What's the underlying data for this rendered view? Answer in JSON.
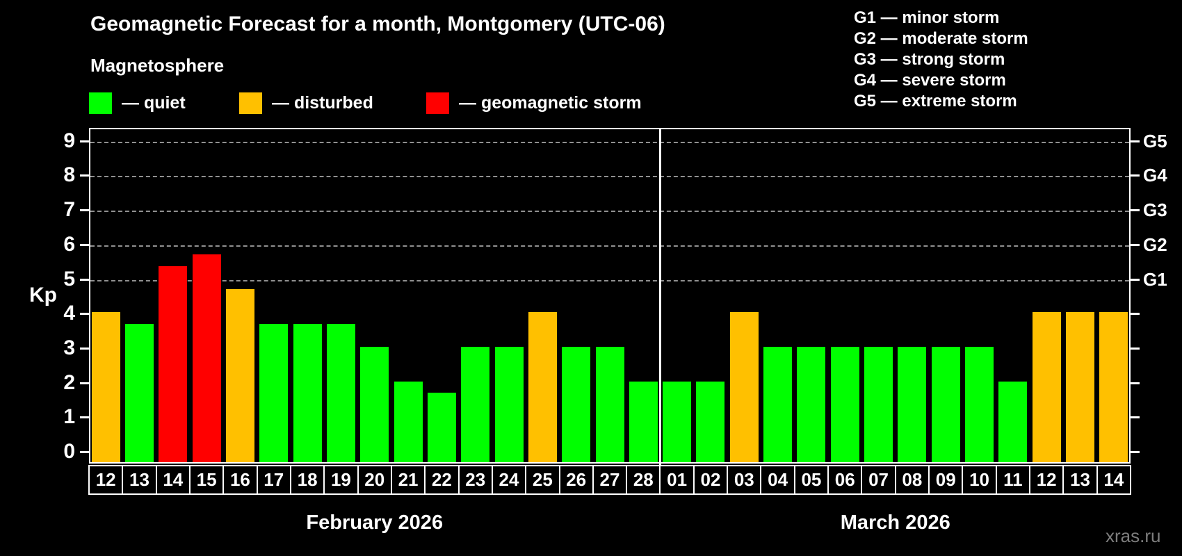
{
  "header": {
    "title": "Geomagnetic Forecast for a month, Montgomery (UTC-06)",
    "subtitle": "Magnetosphere"
  },
  "legend": {
    "items": [
      {
        "key": "quiet",
        "label": "— quiet",
        "color": "#00ff00"
      },
      {
        "key": "disturbed",
        "label": "— disturbed",
        "color": "#ffc000"
      },
      {
        "key": "storm",
        "label": "— geomagnetic storm",
        "color": "#ff0000"
      }
    ]
  },
  "g_legend": [
    "G1 — minor storm",
    "G2 — moderate storm",
    "G3 — strong storm",
    "G4 — severe storm",
    "G5 — extreme storm"
  ],
  "watermark": "xras.ru",
  "colors": {
    "background": "#000000",
    "text": "#ffffff",
    "grid": "#aaaaaa",
    "axis": "#ffffff",
    "quiet": "#00ff00",
    "disturbed": "#ffc000",
    "storm": "#ff0000",
    "watermark": "#7d7d7d"
  },
  "chart_data": {
    "type": "bar",
    "title": "Geomagnetic Forecast for a month, Montgomery (UTC-06)",
    "ylabel": "Kp",
    "ylim": [
      0,
      9.5
    ],
    "yticks": [
      0,
      1,
      2,
      3,
      4,
      5,
      6,
      7,
      8,
      9
    ],
    "gridlines_at_kp": [
      5,
      6,
      7,
      8,
      9
    ],
    "grid": "dashed",
    "legend_position": "top",
    "right_axis_labels": [
      {
        "label": "G1",
        "kp": 5
      },
      {
        "label": "G2",
        "kp": 6
      },
      {
        "label": "G3",
        "kp": 7
      },
      {
        "label": "G4",
        "kp": 8
      },
      {
        "label": "G5",
        "kp": 9
      }
    ],
    "months": [
      {
        "label": "February 2026",
        "start_index": 0,
        "days": 17
      },
      {
        "label": "March 2026",
        "start_index": 17,
        "days": 14
      }
    ],
    "days": [
      {
        "date": "12",
        "month": "February 2026",
        "kp": 4.0,
        "status": "disturbed"
      },
      {
        "date": "13",
        "month": "February 2026",
        "kp": 3.67,
        "status": "quiet"
      },
      {
        "date": "14",
        "month": "February 2026",
        "kp": 5.33,
        "status": "storm"
      },
      {
        "date": "15",
        "month": "February 2026",
        "kp": 5.67,
        "status": "storm"
      },
      {
        "date": "16",
        "month": "February 2026",
        "kp": 4.67,
        "status": "disturbed"
      },
      {
        "date": "17",
        "month": "February 2026",
        "kp": 3.67,
        "status": "quiet"
      },
      {
        "date": "18",
        "month": "February 2026",
        "kp": 3.67,
        "status": "quiet"
      },
      {
        "date": "19",
        "month": "February 2026",
        "kp": 3.67,
        "status": "quiet"
      },
      {
        "date": "20",
        "month": "February 2026",
        "kp": 3.0,
        "status": "quiet"
      },
      {
        "date": "21",
        "month": "February 2026",
        "kp": 2.0,
        "status": "quiet"
      },
      {
        "date": "22",
        "month": "February 2026",
        "kp": 1.67,
        "status": "quiet"
      },
      {
        "date": "23",
        "month": "February 2026",
        "kp": 3.0,
        "status": "quiet"
      },
      {
        "date": "24",
        "month": "February 2026",
        "kp": 3.0,
        "status": "quiet"
      },
      {
        "date": "25",
        "month": "February 2026",
        "kp": 4.0,
        "status": "disturbed"
      },
      {
        "date": "26",
        "month": "February 2026",
        "kp": 3.0,
        "status": "quiet"
      },
      {
        "date": "27",
        "month": "February 2026",
        "kp": 3.0,
        "status": "quiet"
      },
      {
        "date": "28",
        "month": "February 2026",
        "kp": 2.0,
        "status": "quiet"
      },
      {
        "date": "01",
        "month": "March 2026",
        "kp": 2.0,
        "status": "quiet"
      },
      {
        "date": "02",
        "month": "March 2026",
        "kp": 2.0,
        "status": "quiet"
      },
      {
        "date": "03",
        "month": "March 2026",
        "kp": 4.0,
        "status": "disturbed"
      },
      {
        "date": "04",
        "month": "March 2026",
        "kp": 3.0,
        "status": "quiet"
      },
      {
        "date": "05",
        "month": "March 2026",
        "kp": 3.0,
        "status": "quiet"
      },
      {
        "date": "06",
        "month": "March 2026",
        "kp": 3.0,
        "status": "quiet"
      },
      {
        "date": "07",
        "month": "March 2026",
        "kp": 3.0,
        "status": "quiet"
      },
      {
        "date": "08",
        "month": "March 2026",
        "kp": 3.0,
        "status": "quiet"
      },
      {
        "date": "09",
        "month": "March 2026",
        "kp": 3.0,
        "status": "quiet"
      },
      {
        "date": "10",
        "month": "March 2026",
        "kp": 3.0,
        "status": "quiet"
      },
      {
        "date": "11",
        "month": "March 2026",
        "kp": 2.0,
        "status": "quiet"
      },
      {
        "date": "12",
        "month": "March 2026",
        "kp": 4.0,
        "status": "disturbed"
      },
      {
        "date": "13",
        "month": "March 2026",
        "kp": 4.0,
        "status": "disturbed"
      },
      {
        "date": "14",
        "month": "March 2026",
        "kp": 4.0,
        "status": "disturbed"
      }
    ]
  }
}
